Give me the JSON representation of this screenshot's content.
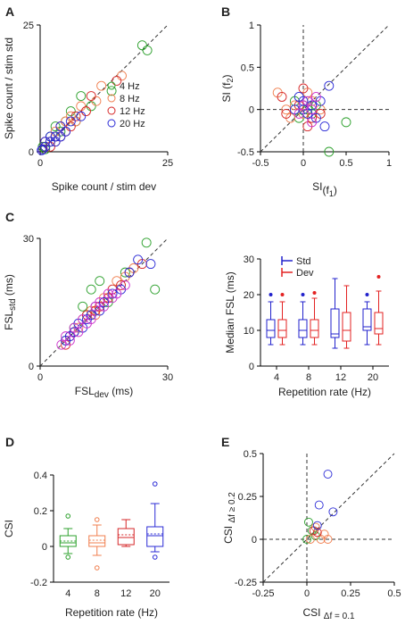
{
  "panel_labels": [
    "A",
    "B",
    "C",
    "D",
    "E"
  ],
  "colors": {
    "4 Hz": "#2ca02c",
    "8 Hz": "#f07f4f",
    "12 Hz": "#d62728",
    "20 Hz": "#2b2bd6",
    "magenta": "#cc33cc",
    "Std": "#2222cc",
    "Dev": "#e32222"
  },
  "chart_data": [
    {
      "id": "A",
      "type": "scatter",
      "xlabel": "Spike count / stim dev",
      "ylabel": "Spike count / stim std",
      "xlim": [
        0,
        25
      ],
      "ylim": [
        0,
        25
      ],
      "xticks": [
        "0",
        "25"
      ],
      "yticks": [
        "0",
        "25"
      ],
      "legend": [
        "4 Hz",
        "8 Hz",
        "12 Hz",
        "20 Hz"
      ],
      "legend_position": "right",
      "identity_line": true,
      "series": [
        {
          "name": "4 Hz",
          "color": "#2ca02c",
          "points": [
            [
              21,
              20
            ],
            [
              20,
              21
            ],
            [
              14,
              12
            ],
            [
              8,
              11
            ],
            [
              6,
              8
            ],
            [
              5,
              6
            ],
            [
              3,
              5
            ],
            [
              2,
              3
            ],
            [
              1,
              1
            ],
            [
              4,
              4
            ],
            [
              7,
              6
            ],
            [
              10,
              9
            ],
            [
              2,
              2
            ],
            [
              1,
              0.5
            ],
            [
              0.5,
              1
            ]
          ]
        },
        {
          "name": "8 Hz",
          "color": "#f07f4f",
          "points": [
            [
              16,
              15
            ],
            [
              11,
              10
            ],
            [
              9,
              8
            ],
            [
              7,
              6
            ],
            [
              5,
              6
            ],
            [
              4,
              3
            ],
            [
              3,
              4
            ],
            [
              2,
              2
            ],
            [
              1,
              1
            ],
            [
              0.5,
              0.5
            ],
            [
              12,
              13
            ],
            [
              6,
              7
            ],
            [
              8,
              9
            ],
            [
              3,
              2
            ]
          ]
        },
        {
          "name": "12 Hz",
          "color": "#d62728",
          "points": [
            [
              15,
              14
            ],
            [
              10,
              11
            ],
            [
              7,
              7
            ],
            [
              5,
              4
            ],
            [
              4,
              5
            ],
            [
              3,
              3
            ],
            [
              2,
              1
            ],
            [
              1,
              2
            ],
            [
              0.5,
              0.5
            ],
            [
              6,
              5
            ],
            [
              9,
              8
            ]
          ]
        },
        {
          "name": "20 Hz",
          "color": "#2b2bd6",
          "points": [
            [
              8,
              7
            ],
            [
              6,
              6
            ],
            [
              5,
              4
            ],
            [
              4,
              5
            ],
            [
              3,
              3
            ],
            [
              2,
              2
            ],
            [
              1,
              1
            ],
            [
              0.5,
              0.5
            ],
            [
              2,
              3
            ],
            [
              3,
              2
            ],
            [
              4,
              3
            ],
            [
              1,
              2
            ],
            [
              0.3,
              0.3
            ]
          ]
        }
      ]
    },
    {
      "id": "B",
      "type": "scatter",
      "xlabel": "SI(f1)",
      "ylabel": "SI (f2)",
      "xlim": [
        -0.5,
        1
      ],
      "ylim": [
        -0.5,
        1
      ],
      "xticks": [
        "-0.5",
        "0",
        "0.5",
        "1"
      ],
      "yticks": [
        "-0.5",
        "0",
        "0.5",
        "1"
      ],
      "identity_line": true,
      "zero_lines": true,
      "series": [
        {
          "name": "4 Hz",
          "color": "#2ca02c",
          "points": [
            [
              0.0,
              0.05
            ],
            [
              0.1,
              -0.05
            ],
            [
              0.5,
              -0.15
            ],
            [
              0.3,
              -0.5
            ],
            [
              -0.1,
              0.1
            ],
            [
              0.05,
              0.0
            ],
            [
              0.15,
              0.05
            ],
            [
              -0.05,
              -0.1
            ]
          ]
        },
        {
          "name": "8 Hz",
          "color": "#f07f4f",
          "points": [
            [
              -0.3,
              0.2
            ],
            [
              -0.1,
              0.05
            ],
            [
              0.0,
              -0.05
            ],
            [
              0.1,
              0.1
            ],
            [
              0.2,
              0.0
            ],
            [
              -0.2,
              0.0
            ],
            [
              0.05,
              0.2
            ],
            [
              -0.15,
              -0.1
            ]
          ]
        },
        {
          "name": "12 Hz",
          "color": "#d62728",
          "points": [
            [
              -0.25,
              0.15
            ],
            [
              0.0,
              0.25
            ],
            [
              0.1,
              -0.1
            ],
            [
              -0.05,
              0.05
            ],
            [
              0.2,
              -0.05
            ],
            [
              0.05,
              -0.2
            ],
            [
              -0.2,
              -0.05
            ]
          ]
        },
        {
          "name": "20 Hz",
          "color": "#2b2bd6",
          "points": [
            [
              0.3,
              0.28
            ],
            [
              0.0,
              0.0
            ],
            [
              0.1,
              0.05
            ],
            [
              0.2,
              0.1
            ],
            [
              -0.05,
              0.15
            ],
            [
              0.05,
              -0.05
            ],
            [
              0.15,
              -0.1
            ],
            [
              0.0,
              0.1
            ],
            [
              0.25,
              -0.2
            ],
            [
              -0.1,
              0.0
            ]
          ]
        },
        {
          "name": "",
          "color": "#cc33cc",
          "points": [
            [
              0.0,
              0.05
            ],
            [
              0.05,
              0.1
            ],
            [
              0.1,
              0.0
            ],
            [
              -0.05,
              -0.05
            ],
            [
              0.15,
              0.15
            ],
            [
              0.1,
              -0.15
            ]
          ]
        }
      ]
    },
    {
      "id": "C1",
      "type": "scatter",
      "xlabel": "FSLdev (ms)",
      "ylabel": "FSLstd (ms)",
      "xlim": [
        0,
        30
      ],
      "ylim": [
        0,
        30
      ],
      "xticks": [
        "0",
        "30"
      ],
      "yticks": [
        "0",
        "30"
      ],
      "identity_line": true,
      "series": [
        {
          "name": "4 Hz",
          "color": "#2ca02c",
          "points": [
            [
              25,
              29
            ],
            [
              14,
              20
            ],
            [
              12,
              18
            ],
            [
              20,
              22
            ],
            [
              27,
              18
            ],
            [
              10,
              14
            ],
            [
              8,
              9
            ],
            [
              6,
              6
            ],
            [
              11,
              12
            ],
            [
              16,
              15
            ]
          ]
        },
        {
          "name": "8 Hz",
          "color": "#f07f4f",
          "points": [
            [
              18,
              20
            ],
            [
              15,
              16
            ],
            [
              12,
              13
            ],
            [
              10,
              11
            ],
            [
              9,
              9
            ],
            [
              7,
              7
            ],
            [
              13,
              12
            ],
            [
              20,
              21
            ],
            [
              22,
              23
            ]
          ]
        },
        {
          "name": "12 Hz",
          "color": "#d62728",
          "points": [
            [
              24,
              24
            ],
            [
              19,
              19
            ],
            [
              17,
              18
            ],
            [
              14,
              14
            ],
            [
              11,
              12
            ],
            [
              8,
              8
            ],
            [
              6,
              5
            ],
            [
              21,
              22
            ],
            [
              16,
              16
            ],
            [
              13,
              13
            ]
          ]
        },
        {
          "name": "20 Hz",
          "color": "#2b2bd6",
          "points": [
            [
              26,
              24
            ],
            [
              23,
              25
            ],
            [
              21,
              22
            ],
            [
              19,
              18
            ],
            [
              17,
              17
            ],
            [
              15,
              15
            ],
            [
              14,
              13
            ],
            [
              12,
              12
            ],
            [
              11,
              11
            ],
            [
              10,
              9
            ],
            [
              9,
              10
            ],
            [
              8,
              8
            ],
            [
              7,
              7
            ],
            [
              6,
              6
            ],
            [
              13,
              14
            ]
          ]
        },
        {
          "name": "",
          "color": "#cc33cc",
          "points": [
            [
              18,
              17
            ],
            [
              16,
              17
            ],
            [
              15,
              14
            ],
            [
              13,
              14
            ],
            [
              12,
              11
            ],
            [
              11,
              10
            ],
            [
              10,
              11
            ],
            [
              9,
              8
            ],
            [
              8,
              9
            ],
            [
              7,
              6
            ],
            [
              6,
              7
            ],
            [
              5,
              5
            ],
            [
              14,
              15
            ],
            [
              17,
              16
            ],
            [
              20,
              19
            ]
          ]
        }
      ]
    },
    {
      "id": "C2",
      "type": "box",
      "xlabel": "Repetition rate (Hz)",
      "ylabel": "Median FSL (ms)",
      "categories": [
        "4",
        "8",
        "12",
        "20"
      ],
      "ylim": [
        0,
        30
      ],
      "yticks": [
        "0",
        "10",
        "20",
        "30"
      ],
      "legend": [
        "Std",
        "Dev"
      ],
      "legend_position": "top-left",
      "series": [
        {
          "name": "Std",
          "color": "#2222cc",
          "boxes": [
            {
              "min": 6,
              "q1": 8,
              "median": 10,
              "q3": 13,
              "max": 18,
              "outlier": 20
            },
            {
              "min": 6,
              "q1": 8,
              "median": 10,
              "q3": 13,
              "max": 18,
              "outlier": 20
            },
            {
              "min": 5,
              "q1": 8,
              "median": 9,
              "q3": 16,
              "max": 24.5,
              "outlier": null
            },
            {
              "min": 6,
              "q1": 10,
              "median": 11,
              "q3": 16,
              "max": 18,
              "outlier": 20
            }
          ]
        },
        {
          "name": "Dev",
          "color": "#e32222",
          "boxes": [
            {
              "min": 6,
              "q1": 8,
              "median": 10,
              "q3": 13,
              "max": 18,
              "outlier": 20
            },
            {
              "min": 6,
              "q1": 8,
              "median": 10,
              "q3": 13,
              "max": 19,
              "outlier": 20.5
            },
            {
              "min": 5,
              "q1": 7,
              "median": 10,
              "q3": 15,
              "max": 22.5,
              "outlier": null
            },
            {
              "min": 6,
              "q1": 9,
              "median": 10.5,
              "q3": 15,
              "max": 21,
              "outlier": 25
            }
          ]
        }
      ]
    },
    {
      "id": "D",
      "type": "box",
      "xlabel": "Repetition rate (Hz)",
      "ylabel": "CSI",
      "categories": [
        "4",
        "8",
        "12",
        "20"
      ],
      "ylim": [
        -0.2,
        0.4
      ],
      "yticks": [
        "-0.2",
        "0",
        "0.2",
        "0.4"
      ],
      "boxes": [
        {
          "color": "#2ca02c",
          "min": -0.04,
          "q1": 0.0,
          "median": 0.02,
          "mean": 0.03,
          "q3": 0.06,
          "max": 0.1,
          "outliers": [
            0.17,
            -0.06
          ]
        },
        {
          "color": "#f07f4f",
          "min": -0.05,
          "q1": 0.0,
          "median": 0.02,
          "mean": 0.035,
          "q3": 0.06,
          "max": 0.12,
          "outliers": [
            0.15,
            -0.12
          ]
        },
        {
          "color": "#d62728",
          "min": 0.0,
          "q1": 0.01,
          "median": 0.05,
          "mean": 0.065,
          "q3": 0.1,
          "max": 0.15,
          "outliers": []
        },
        {
          "color": "#2b2bd6",
          "min": -0.03,
          "q1": 0.0,
          "median": 0.06,
          "mean": 0.07,
          "q3": 0.11,
          "max": 0.24,
          "outliers": [
            0.35,
            -0.06
          ]
        }
      ]
    },
    {
      "id": "E",
      "type": "scatter",
      "xlabel": "CSI Δf = 0.1",
      "ylabel": "CSI Δf ≥ 0.2",
      "xlim": [
        -0.25,
        0.5
      ],
      "ylim": [
        -0.25,
        0.5
      ],
      "xticks": [
        "-0.25",
        "0",
        "0.25",
        "0.5"
      ],
      "yticks": [
        "-0.25",
        "0",
        "0.25",
        "0.5"
      ],
      "identity_line": true,
      "zero_lines": true,
      "series": [
        {
          "name": "4 Hz",
          "color": "#2ca02c",
          "points": [
            [
              0.01,
              0.1
            ],
            [
              0.03,
              0.05
            ],
            [
              0.05,
              0.02
            ],
            [
              0.0,
              0.0
            ]
          ]
        },
        {
          "name": "8 Hz",
          "color": "#f07f4f",
          "points": [
            [
              0.05,
              0.07
            ],
            [
              0.1,
              0.03
            ],
            [
              0.02,
              0.0
            ],
            [
              0.08,
              0.0
            ],
            [
              0.12,
              0.0
            ]
          ]
        },
        {
          "name": "12 Hz",
          "color": "#d62728",
          "points": [
            [
              0.04,
              0.05
            ],
            [
              0.06,
              0.04
            ]
          ]
        },
        {
          "name": "20 Hz",
          "color": "#2b2bd6",
          "points": [
            [
              0.12,
              0.38
            ],
            [
              0.15,
              0.16
            ],
            [
              0.07,
              0.2
            ],
            [
              0.06,
              0.08
            ]
          ]
        }
      ]
    }
  ]
}
